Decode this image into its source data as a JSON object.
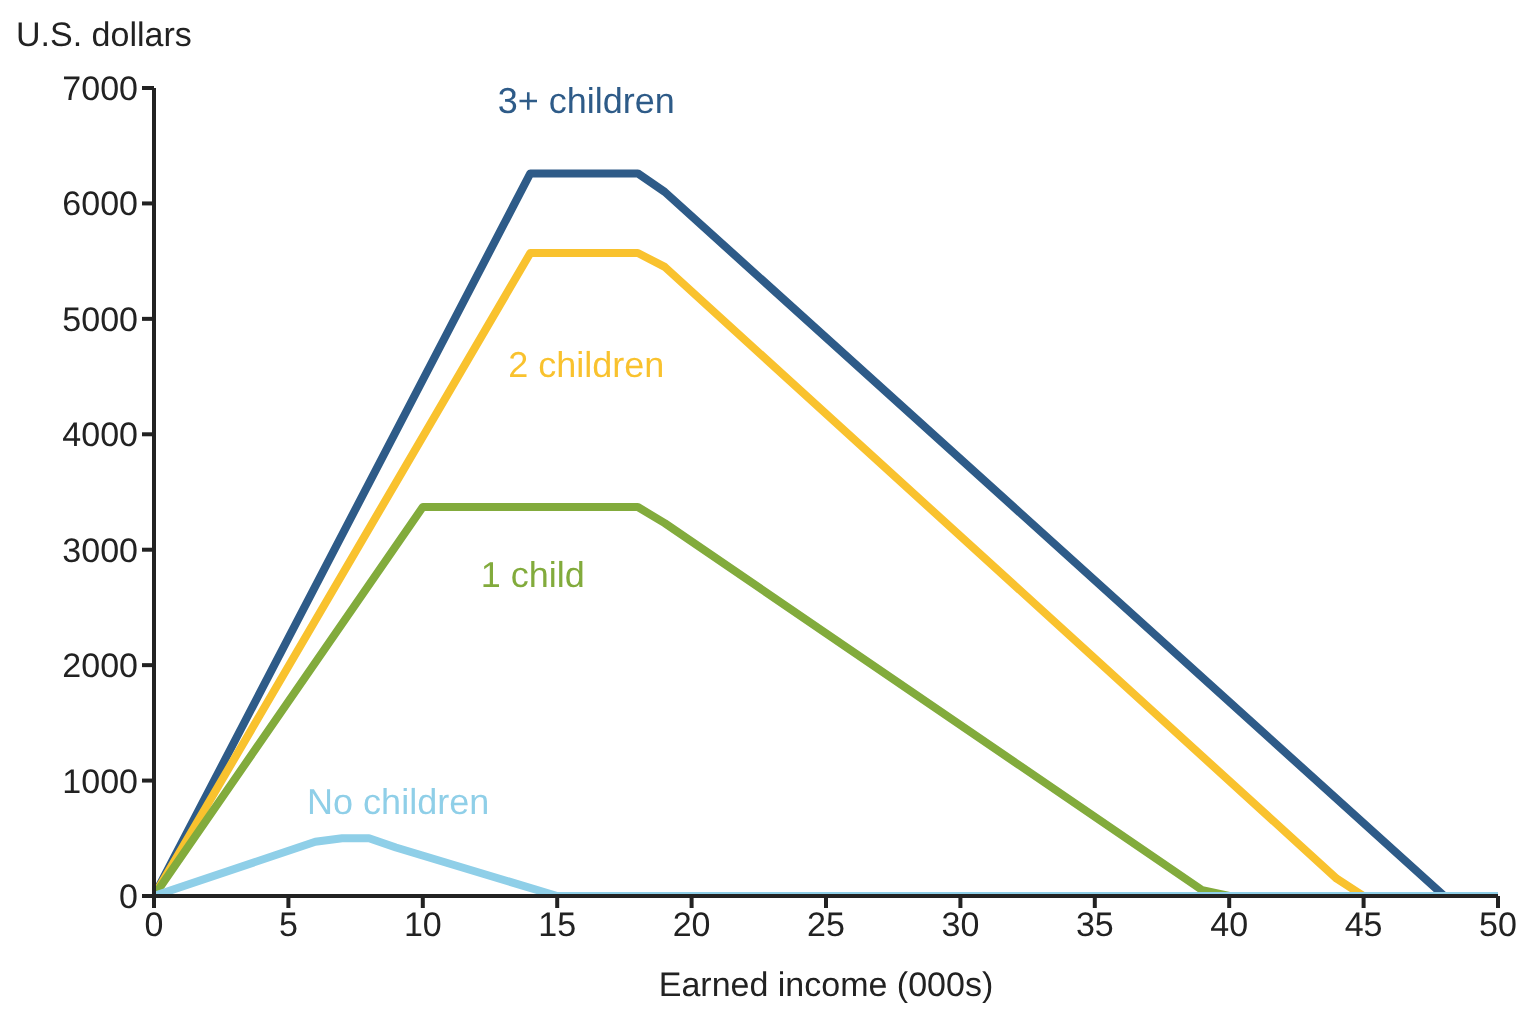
{
  "chart_data": {
    "type": "line",
    "xlabel": "Earned income (000s)",
    "ylabel": "U.S. dollars",
    "xlim": [
      0,
      50
    ],
    "xticks": [
      0,
      5,
      10,
      15,
      20,
      25,
      30,
      35,
      40,
      45,
      50
    ],
    "ylim": [
      0,
      7000
    ],
    "yticks": [
      0,
      1000,
      2000,
      3000,
      4000,
      5000,
      6000,
      7000
    ],
    "grid": false,
    "marker": "none",
    "line_style": "solid",
    "series": [
      {
        "name": "3+ children",
        "color": "#2e5b88",
        "x": [
          0,
          14,
          18,
          19,
          48,
          50
        ],
        "values": [
          0,
          6260,
          6260,
          6100,
          0,
          0
        ]
      },
      {
        "name": "2 children",
        "color": "#f9c22e",
        "x": [
          0,
          14,
          18,
          19,
          44,
          45,
          50
        ],
        "values": [
          0,
          5570,
          5570,
          5450,
          150,
          0,
          0
        ]
      },
      {
        "name": "1 child",
        "color": "#82ab3c",
        "x": [
          0,
          10,
          18,
          19,
          39,
          40,
          50
        ],
        "values": [
          0,
          3370,
          3370,
          3230,
          50,
          0,
          0
        ]
      },
      {
        "name": "No children",
        "color": "#8fcfe8",
        "x": [
          0,
          6,
          7,
          8,
          9,
          15,
          50
        ],
        "values": [
          0,
          470,
          500,
          500,
          420,
          0,
          0
        ]
      }
    ]
  }
}
